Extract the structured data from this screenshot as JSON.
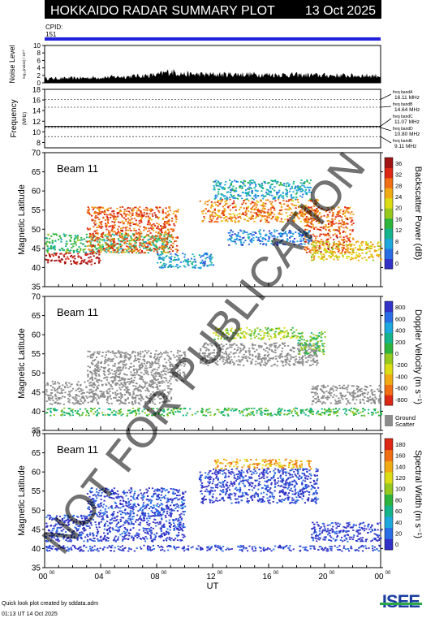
{
  "header": {
    "title": "HOKKAIDO RADAR SUMMARY PLOT",
    "date": "13 Oct 2025",
    "cpid_label": "CPID:",
    "cpid_value": "151"
  },
  "noise_panel": {
    "ylabel": "Noise Level",
    "ylabel_sub": "log₁₀(noise) / 10¹⁰",
    "yticks": [
      "0",
      "2",
      "4",
      "6",
      "8",
      "10"
    ]
  },
  "freq_panel": {
    "ylabel": "Frequency",
    "ylabel_sub": "(MHz)",
    "yticks": [
      "8",
      "10",
      "12",
      "14",
      "16",
      "18"
    ],
    "bands": [
      {
        "name": "freq bandA",
        "value": "16.11 MHz",
        "mhz": 16.11
      },
      {
        "name": "freq bandB",
        "value": "14.64 MHz",
        "mhz": 14.64
      },
      {
        "name": "freq bandC",
        "value": "11.07 MHz",
        "mhz": 11.07
      },
      {
        "name": "freq bandD",
        "value": "10.80 MHz",
        "mhz": 10.8
      },
      {
        "name": "freq bandE",
        "value": "9.11 MHz",
        "mhz": 9.11
      }
    ]
  },
  "panels": [
    {
      "beam": "Beam 11",
      "ylabel": "Magnetic Latitude",
      "cbar_label": "Backscatter Power (dB)",
      "cbar_ticks": [
        "0",
        "4",
        "8",
        "12",
        "16",
        "20",
        "24",
        "28",
        "32",
        "36"
      ],
      "cbar_colors": [
        "#3232c8",
        "#2a6ee6",
        "#1ea8dc",
        "#16b48c",
        "#2db43c",
        "#96c81e",
        "#dcdc14",
        "#f0aa14",
        "#f06e14",
        "#dc2814",
        "#a01414"
      ],
      "ground_scatter": false
    },
    {
      "beam": "Beam 11",
      "ylabel": "Magnetic Latitude",
      "cbar_label": "Doppler Velocity (m s⁻¹)",
      "cbar_ticks": [
        "-800",
        "-600",
        "-400",
        "-200",
        "0",
        "200",
        "400",
        "600",
        "800"
      ],
      "cbar_colors": [
        "#dc2814",
        "#f06e14",
        "#f0aa14",
        "#dcdc14",
        "#96c81e",
        "#2db43c",
        "#16b48c",
        "#1ea8dc",
        "#2a6ee6",
        "#3232c8"
      ],
      "ground_scatter": true,
      "ground_label_1": "Ground",
      "ground_label_2": "Scatter"
    },
    {
      "beam": "Beam 11",
      "ylabel": "Magnetic Latitude",
      "cbar_label": "Spectral Width (m s⁻¹)",
      "cbar_ticks": [
        "0",
        "20",
        "40",
        "60",
        "80",
        "100",
        "120",
        "140",
        "160",
        "180"
      ],
      "cbar_colors": [
        "#3232c8",
        "#2a6ee6",
        "#1ea8dc",
        "#16b48c",
        "#2db43c",
        "#96c81e",
        "#dcdc14",
        "#f0aa14",
        "#f06e14",
        "#dc2814"
      ],
      "ground_scatter": false
    }
  ],
  "lat_ticks": [
    "35",
    "40",
    "45",
    "50",
    "55",
    "60",
    "65",
    "70"
  ],
  "time_axis": {
    "label": "UT",
    "ticks": [
      {
        "h": "00",
        "m": "00"
      },
      {
        "h": "04",
        "m": "00"
      },
      {
        "h": "08",
        "m": "00"
      },
      {
        "h": "12",
        "m": "00"
      },
      {
        "h": "16",
        "m": "00"
      },
      {
        "h": "20",
        "m": "00"
      },
      {
        "h": "00",
        "m": "00"
      }
    ]
  },
  "watermark": "NOT FOR PUBLICATION",
  "footer": {
    "line1": "Quick look plot created by sddata.adm",
    "line2": "01:13 UT 14 Oct 2025",
    "logo": "ISEE"
  },
  "chart_data": [
    {
      "type": "line",
      "title": "Noise Level",
      "xlabel": "UT",
      "ylabel": "Noise Level",
      "xlim": [
        0,
        24
      ],
      "ylim": [
        0,
        10
      ],
      "x": [
        0,
        2,
        4,
        6,
        8,
        9,
        10,
        12,
        14,
        16,
        18,
        20,
        22,
        24
      ],
      "y": [
        1.2,
        1.3,
        1.5,
        1.8,
        2.2,
        3.2,
        2.4,
        2.3,
        2.4,
        2.3,
        2.2,
        2.1,
        2.0,
        2.0
      ]
    },
    {
      "type": "line",
      "title": "Frequency",
      "xlabel": "UT",
      "ylabel": "Frequency (MHz)",
      "ylim": [
        7,
        18
      ],
      "x": [
        0,
        24
      ],
      "series": [
        {
          "values": [
            11.0,
            11.0
          ]
        }
      ]
    },
    {
      "type": "heatmap",
      "title": "Backscatter Power",
      "xlabel": "UT",
      "ylabel": "Magnetic Latitude",
      "xlim": [
        0,
        24
      ],
      "ylim": [
        35,
        70
      ],
      "zlim": [
        0,
        38
      ],
      "regions": [
        {
          "t0": 0,
          "t1": 4,
          "lat0": 41,
          "lat1": 44,
          "value": 36
        },
        {
          "t0": 0,
          "t1": 9,
          "lat0": 44,
          "lat1": 49,
          "value": 14
        },
        {
          "t0": 3,
          "t1": 9.5,
          "lat0": 44,
          "lat1": 56,
          "value": 30
        },
        {
          "t0": 8,
          "t1": 12,
          "lat0": 40,
          "lat1": 44,
          "value": 8
        },
        {
          "t0": 11,
          "t1": 19.5,
          "lat0": 52,
          "lat1": 58,
          "value": 28
        },
        {
          "t0": 12,
          "t1": 19,
          "lat0": 58,
          "lat1": 63,
          "value": 10
        },
        {
          "t0": 18.5,
          "t1": 22,
          "lat0": 44,
          "lat1": 56,
          "value": 30
        },
        {
          "t0": 19,
          "t1": 24,
          "lat0": 42,
          "lat1": 47,
          "value": 24
        },
        {
          "t0": 13,
          "t1": 19,
          "lat0": 46,
          "lat1": 50,
          "value": 6
        }
      ]
    },
    {
      "type": "heatmap",
      "title": "Doppler Velocity",
      "xlabel": "UT",
      "ylabel": "Magnetic Latitude",
      "xlim": [
        0,
        24
      ],
      "ylim": [
        35,
        70
      ],
      "zlim": [
        -800,
        800
      ],
      "regions": [
        {
          "t0": 0,
          "t1": 9,
          "lat0": 42,
          "lat1": 48,
          "value": "ground"
        },
        {
          "t0": 3,
          "t1": 10,
          "lat0": 48,
          "lat1": 56,
          "value": "ground"
        },
        {
          "t0": 11,
          "t1": 19.5,
          "lat0": 52,
          "lat1": 58,
          "value": "ground"
        },
        {
          "t0": 12,
          "t1": 18,
          "lat0": 59,
          "lat1": 62,
          "value": -100
        },
        {
          "t0": 18,
          "t1": 20,
          "lat0": 55,
          "lat1": 61,
          "value": 50
        },
        {
          "t0": 19,
          "t1": 24,
          "lat0": 42,
          "lat1": 47,
          "value": "ground"
        },
        {
          "t0": 0,
          "t1": 24,
          "lat0": 39,
          "lat1": 41,
          "value": 100
        }
      ]
    },
    {
      "type": "heatmap",
      "title": "Spectral Width",
      "xlabel": "UT",
      "ylabel": "Magnetic Latitude",
      "xlim": [
        0,
        24
      ],
      "ylim": [
        35,
        70
      ],
      "zlim": [
        0,
        190
      ],
      "regions": [
        {
          "t0": 0,
          "t1": 10,
          "lat0": 42,
          "lat1": 49,
          "value": 10
        },
        {
          "t0": 3,
          "t1": 10,
          "lat0": 49,
          "lat1": 56,
          "value": 15
        },
        {
          "t0": 11,
          "t1": 19.5,
          "lat0": 52,
          "lat1": 61,
          "value": 12
        },
        {
          "t0": 12,
          "t1": 19,
          "lat0": 61,
          "lat1": 63.5,
          "value": 140
        },
        {
          "t0": 19,
          "t1": 24,
          "lat0": 42,
          "lat1": 47,
          "value": 10
        },
        {
          "t0": 0,
          "t1": 24,
          "lat0": 39.5,
          "lat1": 41,
          "value": 10
        }
      ]
    }
  ]
}
